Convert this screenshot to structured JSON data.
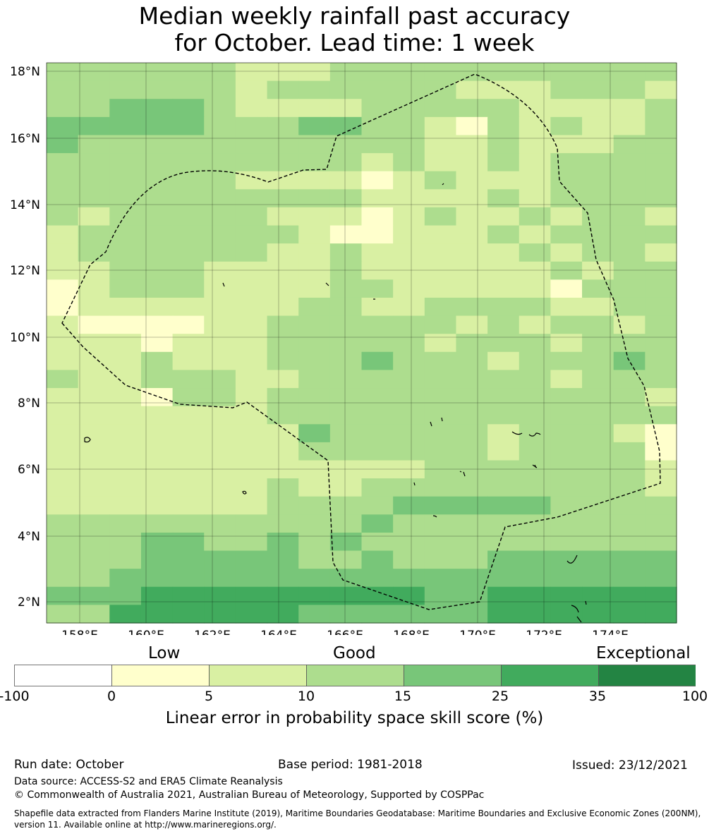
{
  "title": {
    "line1": "Median weekly rainfall past accuracy",
    "line2": "for October. Lead time: 1 week"
  },
  "map": {
    "lat_labels": [
      "18°N",
      "16°N",
      "14°N",
      "12°N",
      "10°N",
      "8°N",
      "6°N",
      "4°N",
      "2°N"
    ],
    "lon_labels": [
      "158°E",
      "160°E",
      "162°E",
      "164°E",
      "166°E",
      "168°E",
      "170°E",
      "172°E",
      "174°E"
    ],
    "cell_grid_rows": [
      "33333322233333333333",
      "33333323333332223332",
      "33444322223333322223",
      "44444333443321323223",
      "43333333333322322233",
      "33333333332322323333",
      "33333322221232223333",
      "33333333332222323333",
      "32333332221232232332",
      "23333333211222323333",
      "23333332232222232332",
      "22333222232222223233",
      "12333222233222221333",
      "12222222332233332233",
      "21111223333332323323",
      "22212223333323332333",
      "22232223334333233343",
      "32233322333333332333",
      "22213323333333333332",
      "22222223333333333333",
      "22222222433333233321",
      "22222222333333233331",
      "22222222222233333332",
      "22222223223333333332",
      "22222223333444443333",
      "33333333334333333333",
      "33344334343333333333",
      "33344444334333444444",
      "33444444444444444444",
      "44455555555544555555",
      "33555555444444555555"
    ]
  },
  "legend": {
    "quality_labels": [
      "Low",
      "Good",
      "Exceptional"
    ],
    "tick_labels": [
      "-100",
      "0",
      "5",
      "10",
      "15",
      "25",
      "35",
      "100"
    ],
    "colors": [
      "#ffffff",
      "#ffffcc",
      "#d9f0a3",
      "#addd8e",
      "#78c679",
      "#41ab5d",
      "#238443"
    ],
    "axis_label": "Linear error in probability space skill score (%)"
  },
  "footer": {
    "run_date": "Run date: October",
    "base_period": "Base period: 1981-2018",
    "issued": "Issued: 23/12/2021",
    "data_source": "Data source: ACCESS-S2 and ERA5 Climate Reanalysis",
    "copyright": "© Commonwealth of Australia 2021, Australian Bureau of Meteorology, Supported by COSPPac",
    "shapefile_line1": "Shapefile data extracted from Flanders Marine Institute (2019), Maritime Boundaries Geodatabase: Maritime Boundaries and Exclusive Economic Zones (200NM),",
    "shapefile_line2": "version 11. Available online at http://www.marineregions.org/."
  }
}
